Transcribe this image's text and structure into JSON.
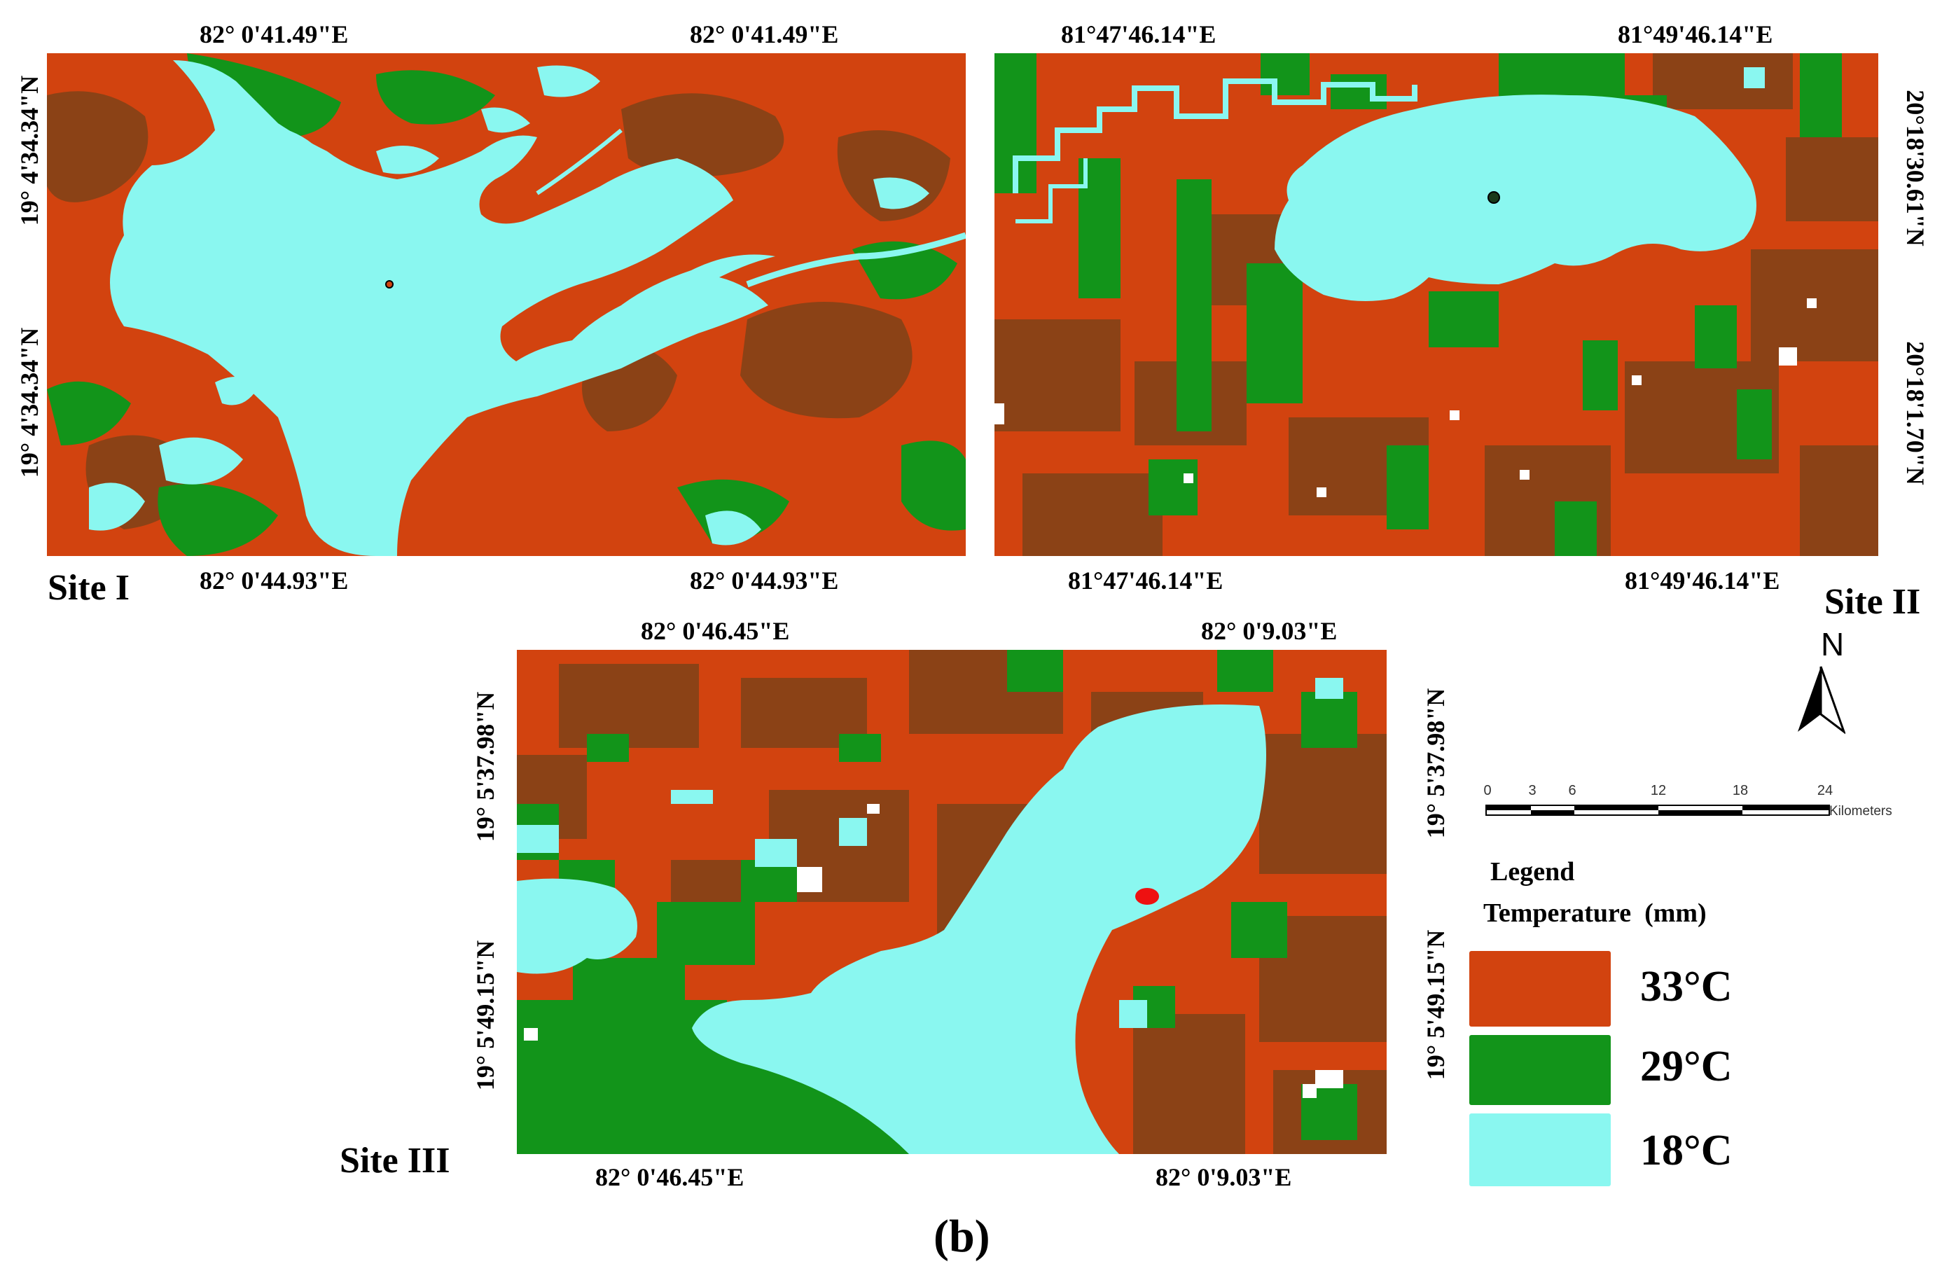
{
  "site1": {
    "label": "Site I",
    "top_left": "82° 0'41.49\"E",
    "top_right": "82° 0'41.49\"E",
    "bottom_left": "82° 0'44.93\"E",
    "bottom_right": "82° 0'44.93\"E",
    "left_top": "19° 4'34.34\"N",
    "left_bottom": "19° 4'34.34\"N"
  },
  "site2": {
    "label": "Site II",
    "top_left": "81°47'46.14\"E",
    "top_right": "81°49'46.14\"E",
    "bottom_left": "81°47'46.14\"E",
    "bottom_right": "81°49'46.14\"E",
    "right_top": "20°18'30.61\"N",
    "right_bottom": "20°18'1.70\"N"
  },
  "site3": {
    "label": "Site III",
    "top_left": "82° 0'46.45\"E",
    "top_right": "82° 0'9.03\"E",
    "bottom_left": "82° 0'46.45\"E",
    "bottom_right": "82° 0'9.03\"E",
    "left_top": "19° 5'37.98\"N",
    "left_bottom": "19° 5'49.15\"N",
    "right_top": "19° 5'37.98\"N",
    "right_bottom": "19° 5'49.15\"N"
  },
  "north_arrow": {
    "letter": "N"
  },
  "scale_bar": {
    "ticks": [
      "0",
      "3",
      "6",
      "12",
      "18",
      "24"
    ],
    "unit": "Kilometers"
  },
  "legend": {
    "heading": "Legend",
    "title": "Temperature  (mm)",
    "classes": [
      {
        "label": "33°C",
        "color": "#d2430f"
      },
      {
        "label": "29°C",
        "color": "#12941a"
      },
      {
        "label": "18°C",
        "color": "#8af7f0"
      }
    ]
  },
  "map_colors": {
    "hot": "#d2430f",
    "hot_dark": "#8b4216",
    "mid": "#12941a",
    "water": "#8af7f0"
  },
  "caption": "(b)"
}
